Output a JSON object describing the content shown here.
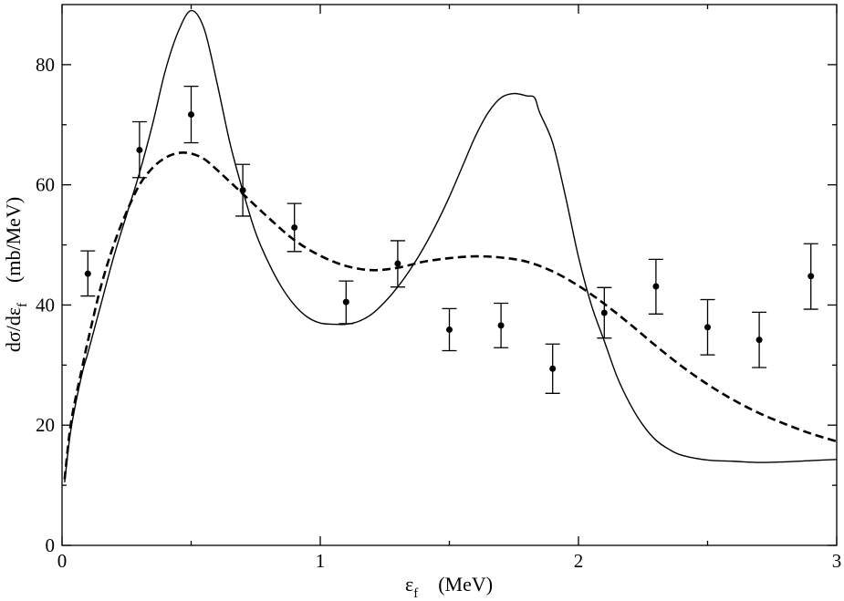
{
  "chart_data": {
    "type": "line",
    "title": "",
    "xlabel": {
      "symbol": "ε",
      "subscript": "f",
      "unit": "(MeV)"
    },
    "ylabel": {
      "prefix": "dσ/dε",
      "subscript": "f",
      "unit": "(mb/MeV)"
    },
    "xlim": [
      0,
      3
    ],
    "ylim": [
      0,
      90
    ],
    "x_ticks": [
      0,
      1,
      2,
      3
    ],
    "x_tick_labels": [
      "0",
      "1",
      "2",
      "3"
    ],
    "y_ticks": [
      0,
      20,
      40,
      60,
      80
    ],
    "y_tick_labels": [
      "0",
      "20",
      "40",
      "60",
      "80"
    ],
    "grid": false,
    "series": [
      {
        "name": "solid-curve",
        "style": "solid",
        "color": "#000000",
        "x": [
          0.01,
          0.03,
          0.05,
          0.08,
          0.1,
          0.15,
          0.2,
          0.25,
          0.3,
          0.35,
          0.4,
          0.45,
          0.5,
          0.55,
          0.6,
          0.65,
          0.7,
          0.75,
          0.8,
          0.85,
          0.9,
          0.95,
          1.0,
          1.05,
          1.1,
          1.15,
          1.2,
          1.25,
          1.3,
          1.35,
          1.4,
          1.45,
          1.5,
          1.55,
          1.6,
          1.65,
          1.7,
          1.75,
          1.8,
          1.83,
          1.85,
          1.9,
          1.95,
          2.0,
          2.05,
          2.1,
          2.15,
          2.2,
          2.25,
          2.3,
          2.35,
          2.4,
          2.5,
          2.6,
          2.7,
          2.8,
          2.9,
          3.0
        ],
        "y": [
          10.5,
          18,
          23,
          29,
          32,
          40,
          48,
          55,
          62,
          70,
          79,
          85.5,
          89,
          86,
          77,
          67,
          59,
          52,
          47,
          43,
          40,
          38,
          37,
          36.8,
          36.8,
          37.3,
          38.5,
          40.5,
          43,
          46,
          49.5,
          53.5,
          58,
          63,
          68,
          72,
          74.5,
          75.2,
          74.8,
          74.5,
          72,
          67,
          58,
          48,
          40,
          34,
          28,
          23.5,
          20,
          17.5,
          16,
          15,
          14.2,
          14,
          13.8,
          13.9,
          14.1,
          14.3
        ]
      },
      {
        "name": "dashed-curve",
        "style": "dashed",
        "color": "#000000",
        "x": [
          0.01,
          0.03,
          0.05,
          0.08,
          0.1,
          0.15,
          0.2,
          0.25,
          0.3,
          0.35,
          0.4,
          0.45,
          0.5,
          0.55,
          0.6,
          0.7,
          0.8,
          0.9,
          1.0,
          1.1,
          1.2,
          1.3,
          1.4,
          1.5,
          1.6,
          1.7,
          1.8,
          1.9,
          2.0,
          2.1,
          2.2,
          2.3,
          2.4,
          2.5,
          2.6,
          2.7,
          2.8,
          2.9,
          3.0
        ],
        "y": [
          11,
          19,
          24,
          30,
          34,
          43,
          50,
          55.5,
          60,
          62.8,
          64.5,
          65.3,
          65.2,
          64.3,
          62.5,
          58.5,
          54.5,
          50.8,
          48.2,
          46.5,
          45.8,
          46.2,
          47.2,
          47.8,
          48.1,
          47.9,
          47.2,
          45.6,
          43.2,
          40.2,
          36.8,
          33.2,
          29.8,
          26.8,
          24.2,
          22,
          20.2,
          18.6,
          17.3
        ]
      }
    ],
    "points": {
      "name": "data-points",
      "x": [
        0.1,
        0.3,
        0.5,
        0.7,
        0.9,
        1.1,
        1.3,
        1.5,
        1.7,
        1.9,
        2.1,
        2.3,
        2.5,
        2.7,
        2.9
      ],
      "y": [
        45.2,
        65.8,
        71.7,
        59.1,
        52.9,
        40.5,
        46.9,
        35.9,
        36.6,
        29.4,
        38.7,
        43.1,
        36.3,
        34.2,
        44.8
      ],
      "err_low": [
        41.5,
        61.2,
        67.0,
        54.8,
        48.9,
        36.9,
        43.0,
        32.4,
        32.9,
        25.3,
        34.5,
        38.5,
        31.7,
        29.6,
        39.3
      ],
      "err_high": [
        49.0,
        70.5,
        76.4,
        63.4,
        56.9,
        44.0,
        50.7,
        39.4,
        40.3,
        33.5,
        42.9,
        47.6,
        40.9,
        38.8,
        50.2
      ]
    }
  }
}
